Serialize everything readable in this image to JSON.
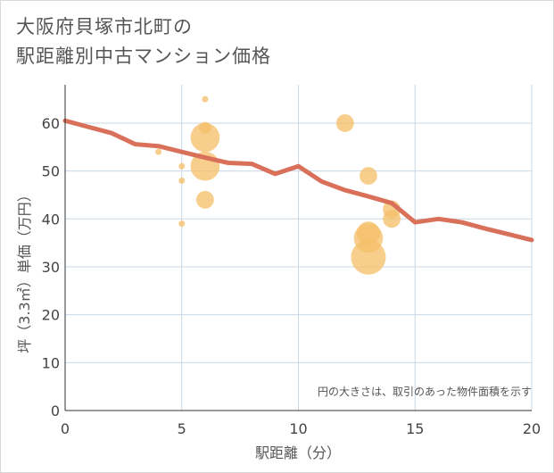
{
  "header": {
    "title_line1": "大阪府貝塚市北町の",
    "title_line2": "駅距離別中古マンション価格"
  },
  "chart_data": {
    "type": "scatter",
    "title": "大阪府貝塚市北町の駅距離別中古マンション価格",
    "xlabel": "駅距離（分）",
    "ylabel": "坪（3.3㎡）単価（万円）",
    "xlim": [
      0,
      20
    ],
    "ylim": [
      0,
      68
    ],
    "xticks": [
      0,
      5,
      10,
      15,
      20
    ],
    "yticks": [
      0,
      10,
      20,
      30,
      40,
      50,
      60
    ],
    "grid": true,
    "annotation": "円の大きさは、取引のあった物件面積を示す",
    "colors": {
      "bubble": "#f5c06a",
      "line": "#d9705a",
      "grid": "#c9d7e6"
    },
    "bubbles": [
      {
        "x": 4,
        "y": 54,
        "size": 1
      },
      {
        "x": 5,
        "y": 51,
        "size": 1
      },
      {
        "x": 5,
        "y": 48,
        "size": 1
      },
      {
        "x": 5,
        "y": 39,
        "size": 1
      },
      {
        "x": 6,
        "y": 65,
        "size": 1
      },
      {
        "x": 6,
        "y": 59,
        "size": 2
      },
      {
        "x": 6,
        "y": 57,
        "size": 5
      },
      {
        "x": 6,
        "y": 51,
        "size": 5
      },
      {
        "x": 6,
        "y": 44,
        "size": 3
      },
      {
        "x": 12,
        "y": 60,
        "size": 3
      },
      {
        "x": 13,
        "y": 49,
        "size": 3
      },
      {
        "x": 13,
        "y": 37,
        "size": 4
      },
      {
        "x": 13,
        "y": 36,
        "size": 5
      },
      {
        "x": 13,
        "y": 32,
        "size": 6
      },
      {
        "x": 14,
        "y": 42,
        "size": 3
      },
      {
        "x": 14,
        "y": 40,
        "size": 3
      }
    ],
    "series": [
      {
        "name": "trend",
        "x": [
          0,
          1,
          2,
          3,
          4,
          5,
          6,
          7,
          8,
          9,
          10,
          11,
          12,
          13,
          14,
          15,
          16,
          17,
          18,
          19,
          20
        ],
        "values": [
          60.5,
          59.2,
          57.9,
          55.6,
          55.2,
          54.0,
          52.8,
          51.7,
          51.5,
          49.4,
          51.0,
          47.8,
          46.0,
          44.7,
          43.3,
          39.3,
          40.0,
          39.3,
          38.0,
          36.8,
          35.6
        ]
      }
    ]
  }
}
